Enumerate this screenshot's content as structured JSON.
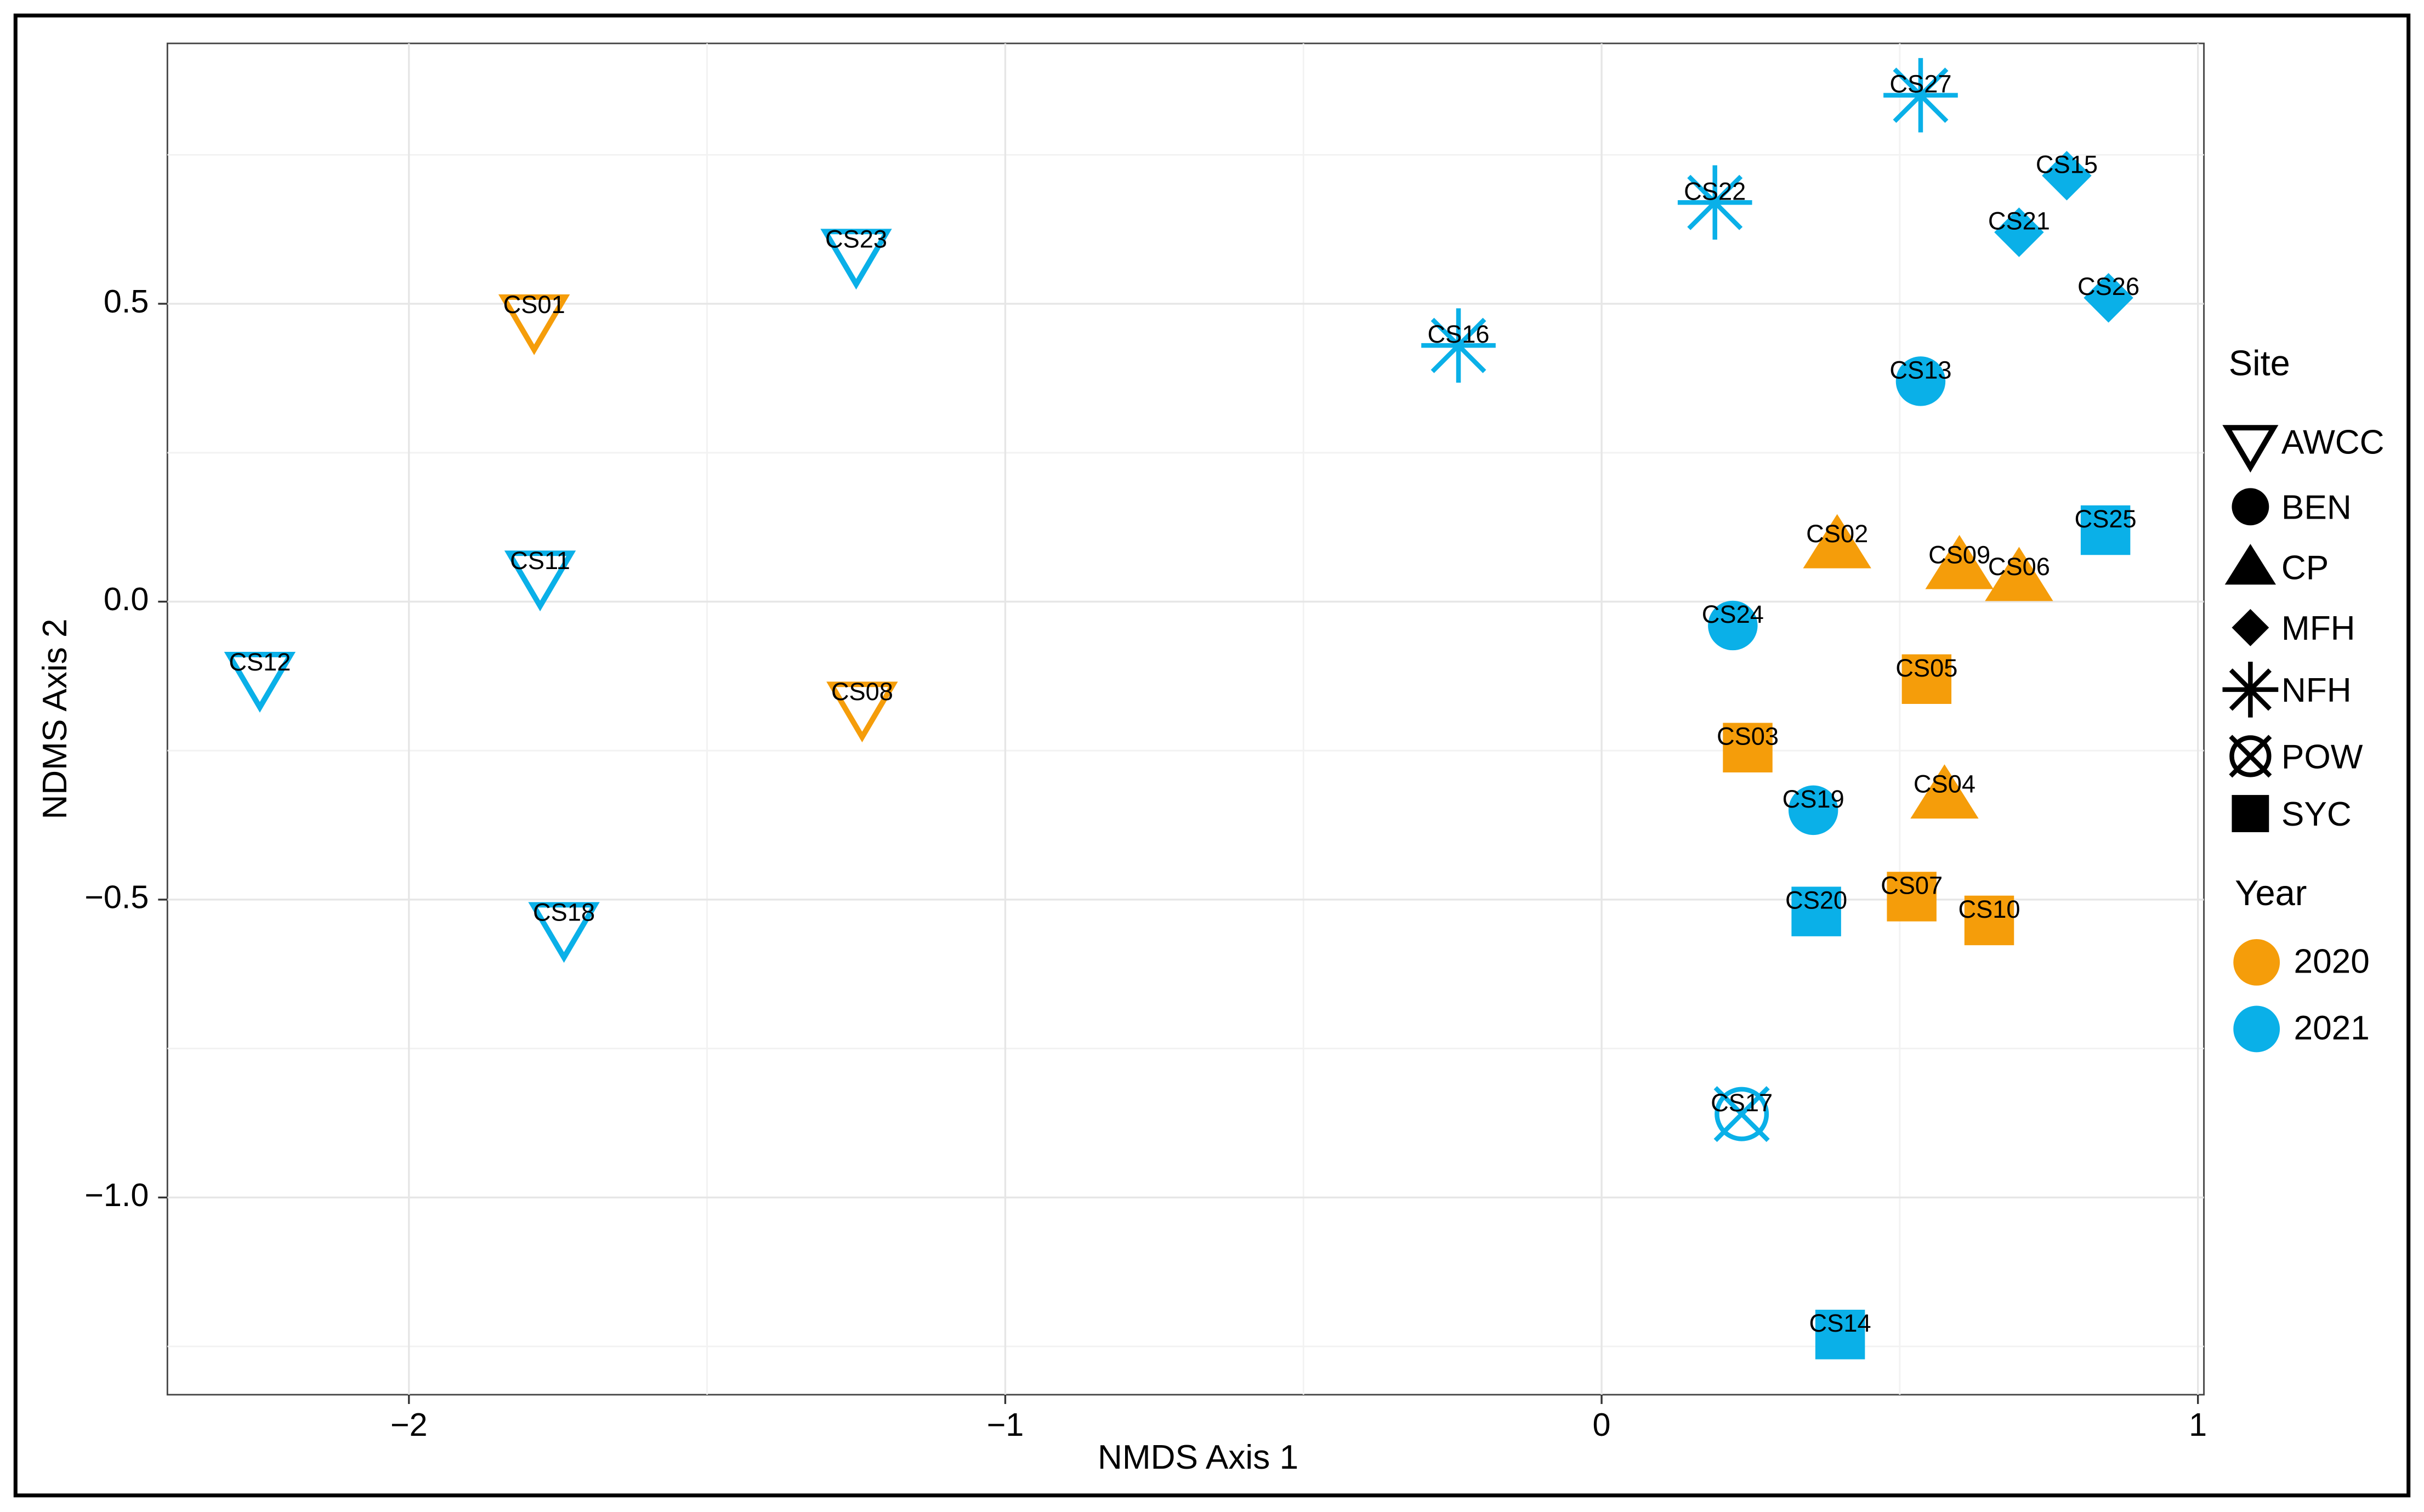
{
  "chart_data": {
    "type": "scatter",
    "xlabel": "NMDS Axis 1",
    "ylabel": "NDMS Axis 2",
    "xlim": [
      -2.405,
      1.01
    ],
    "ylim": [
      -1.331,
      0.937
    ],
    "xticks": [
      {
        "value": -2,
        "label": "−2"
      },
      {
        "value": -1,
        "label": "−1"
      },
      0,
      1
    ],
    "yticks": [
      0.5,
      {
        "value": 0,
        "label": "0.0"
      },
      {
        "value": -0.5,
        "label": "−0.5"
      },
      {
        "value": -1,
        "label": "−1.0"
      }
    ],
    "x_minor_ticks": [
      -1.5,
      -0.5,
      0.5
    ],
    "y_minor_ticks": [
      0.75,
      0.25,
      -0.25,
      -0.75,
      -1.25
    ],
    "grid": true,
    "labels": [
      "CS01",
      "CS23",
      "CS11",
      "CS12",
      "CS08",
      "CS18",
      "CS16",
      "CS22",
      "CS27",
      "CS15",
      "CS21",
      "CS26",
      "CS13",
      "CS25",
      "CS02",
      "CS09",
      "CS06",
      "CS24",
      "CS05",
      "CS03",
      "CS04",
      "CS19",
      "CS20",
      "CS07",
      "CS10",
      "CS17",
      "CS14"
    ],
    "x": [
      -1.79,
      -1.25,
      -1.78,
      -2.25,
      -1.24,
      -1.74,
      -0.24,
      0.19,
      0.535,
      0.78,
      0.7,
      0.85,
      0.535,
      0.845,
      0.395,
      0.6,
      0.7,
      0.22,
      0.545,
      0.245,
      0.575,
      0.355,
      0.36,
      0.52,
      0.65,
      0.235,
      0.4
    ],
    "y": [
      0.48,
      0.59,
      0.05,
      -0.12,
      -0.17,
      -0.54,
      0.43,
      0.67,
      0.85,
      0.715,
      0.62,
      0.51,
      0.37,
      0.12,
      0.095,
      0.06,
      0.04,
      -0.04,
      -0.13,
      -0.245,
      -0.325,
      -0.35,
      -0.52,
      -0.495,
      -0.535,
      -0.86,
      -1.23
    ],
    "site": [
      "AWCC",
      "AWCC",
      "AWCC",
      "AWCC",
      "AWCC",
      "AWCC",
      "NFH",
      "NFH",
      "NFH",
      "MFH",
      "MFH",
      "MFH",
      "BEN",
      "SYC",
      "CP",
      "CP",
      "CP",
      "BEN",
      "SYC",
      "SYC",
      "CP",
      "BEN",
      "SYC",
      "SYC",
      "SYC",
      "POW",
      "SYC"
    ],
    "year": [
      "2020",
      "2021",
      "2021",
      "2021",
      "2020",
      "2021",
      "2021",
      "2021",
      "2021",
      "2021",
      "2021",
      "2021",
      "2021",
      "2021",
      "2020",
      "2020",
      "2020",
      "2021",
      "2020",
      "2020",
      "2020",
      "2021",
      "2021",
      "2020",
      "2020",
      "2021",
      "2021"
    ],
    "site_legend": {
      "title": "Site",
      "items": [
        "AWCC",
        "BEN",
        "CP",
        "MFH",
        "NFH",
        "POW",
        "SYC"
      ]
    },
    "year_legend": {
      "title": "Year",
      "items": [
        {
          "name": "2020",
          "color": "#f59d0a"
        },
        {
          "name": "2021",
          "color": "#0ab0e8"
        }
      ]
    }
  }
}
